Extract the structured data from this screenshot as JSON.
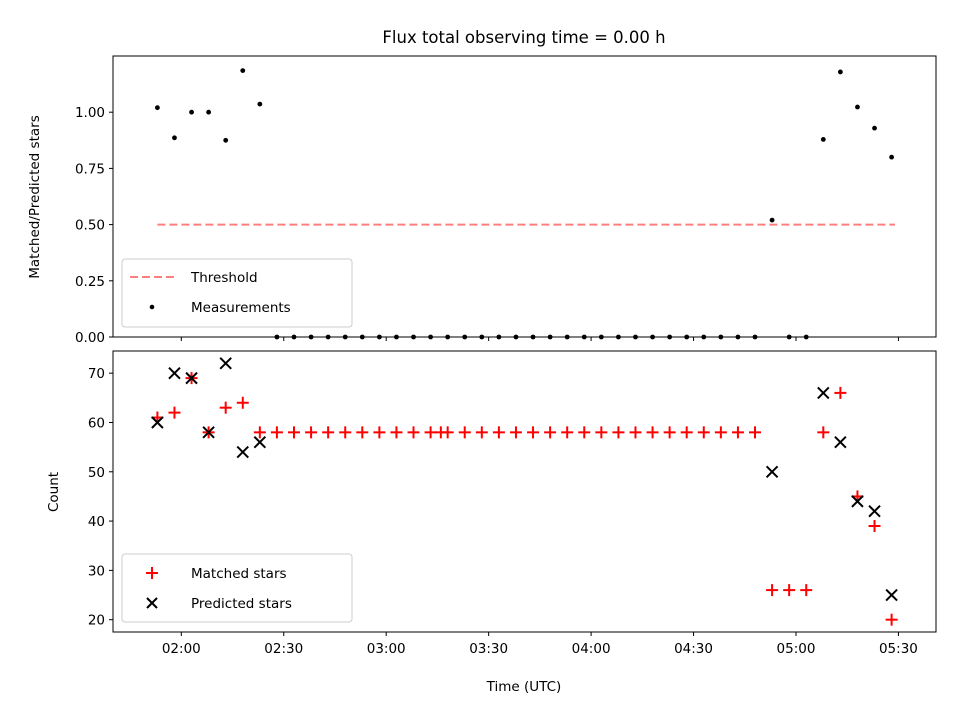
{
  "title": "Flux total observing time = 0.00 h",
  "xlabel": "Time (UTC)",
  "x_ticks": [
    "02:00",
    "02:30",
    "03:00",
    "03:30",
    "04:00",
    "04:30",
    "05:00",
    "05:30"
  ],
  "chart_data": [
    {
      "type": "scatter",
      "panel": "top",
      "ylabel": "Matched/Predicted stars",
      "ylim": [
        0,
        1.25
      ],
      "y_ticks": [
        "0.00",
        "0.25",
        "0.50",
        "0.75",
        "1.00"
      ],
      "x_unit": "time (UTC)",
      "legend": {
        "placement": "lower-left"
      },
      "series": [
        {
          "name": "Threshold",
          "kind": "dashed-line",
          "color": "#ff7f7f",
          "x": [
            "01:53",
            "05:29"
          ],
          "y": [
            0.5,
            0.5
          ]
        },
        {
          "name": "Measurements",
          "kind": "dot",
          "color": "#000000",
          "x": [
            "01:53",
            "01:58",
            "02:03",
            "02:08",
            "02:13",
            "02:18",
            "02:23",
            "02:28",
            "02:33",
            "02:38",
            "02:43",
            "02:48",
            "02:53",
            "02:58",
            "03:03",
            "03:08",
            "03:13",
            "03:18",
            "03:23",
            "03:28",
            "03:33",
            "03:38",
            "03:43",
            "03:48",
            "03:53",
            "03:58",
            "04:03",
            "04:08",
            "04:13",
            "04:18",
            "04:23",
            "04:28",
            "04:33",
            "04:38",
            "04:43",
            "04:48",
            "04:53",
            "04:58",
            "05:03",
            "05:08",
            "05:13",
            "05:18",
            "05:23",
            "05:28"
          ],
          "y": [
            1.02,
            0.886,
            1.0,
            1.0,
            0.875,
            1.185,
            1.036,
            0.0,
            0.0,
            0.0,
            0.0,
            0.0,
            0.0,
            0.0,
            0.0,
            0.0,
            0.0,
            0.0,
            0.0,
            0.0,
            0.0,
            0.0,
            0.0,
            0.0,
            0.0,
            0.0,
            0.0,
            0.0,
            0.0,
            0.0,
            0.0,
            0.0,
            0.0,
            0.0,
            0.0,
            0.0,
            0.52,
            0.0,
            0.0,
            0.879,
            1.179,
            1.023,
            0.929,
            0.8
          ]
        }
      ]
    },
    {
      "type": "scatter",
      "panel": "bottom",
      "ylabel": "Count",
      "ylim": [
        17.5,
        74.5
      ],
      "y_ticks": [
        "20",
        "30",
        "40",
        "50",
        "60",
        "70"
      ],
      "x_unit": "time (UTC)",
      "legend": {
        "placement": "lower-left"
      },
      "series": [
        {
          "name": "Matched stars",
          "marker": "+",
          "color": "#ff0000",
          "x": [
            "01:53",
            "01:58",
            "02:03",
            "02:08",
            "02:13",
            "02:18",
            "02:23",
            "02:28",
            "02:33",
            "02:38",
            "02:43",
            "02:48",
            "02:53",
            "02:58",
            "03:03",
            "03:08",
            "03:13",
            "03:16",
            "03:18",
            "03:23",
            "03:28",
            "03:33",
            "03:38",
            "03:43",
            "03:48",
            "03:53",
            "03:58",
            "04:03",
            "04:08",
            "04:13",
            "04:18",
            "04:23",
            "04:28",
            "04:33",
            "04:38",
            "04:43",
            "04:48",
            "04:53",
            "04:58",
            "05:03",
            "05:08",
            "05:13",
            "05:18",
            "05:23",
            "05:28"
          ],
          "y": [
            61,
            62,
            69,
            58,
            63,
            64,
            58,
            58,
            58,
            58,
            58,
            58,
            58,
            58,
            58,
            58,
            58,
            58,
            58,
            58,
            58,
            58,
            58,
            58,
            58,
            58,
            58,
            58,
            58,
            58,
            58,
            58,
            58,
            58,
            58,
            58,
            58,
            26,
            26,
            26,
            58,
            66,
            45,
            39,
            20
          ]
        },
        {
          "name": "Predicted stars",
          "marker": "x",
          "color": "#000000",
          "x": [
            "01:53",
            "01:58",
            "02:03",
            "02:08",
            "02:13",
            "02:18",
            "02:23",
            "04:53",
            "05:08",
            "05:13",
            "05:18",
            "05:23",
            "05:28"
          ],
          "y": [
            60,
            70,
            69,
            58,
            72,
            54,
            56,
            50,
            66,
            56,
            44,
            42,
            25
          ]
        }
      ]
    }
  ]
}
